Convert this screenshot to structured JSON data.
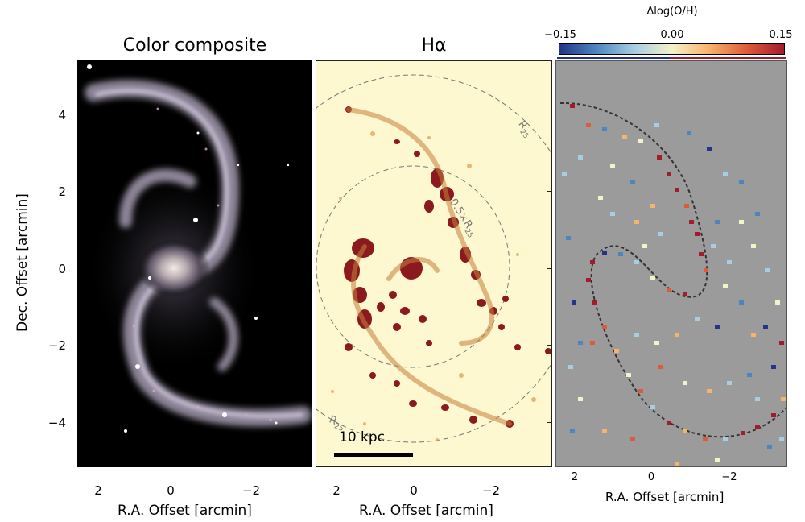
{
  "panels": {
    "left": {
      "title": "Color composite",
      "xlabel": "R.A. Offset [arcmin]",
      "ylabel": "Dec. Offset [arcmin]"
    },
    "middle": {
      "title": "Hα",
      "xlabel": "R.A. Offset [arcmin]",
      "scalebar_label": "10 kpc"
    },
    "right": {
      "xlabel": "R.A. Offset [arcmin]"
    }
  },
  "y_ticks": [
    "4",
    "2",
    "0",
    "−2",
    "−4"
  ],
  "x_ticks_left": [
    "2",
    "0",
    "−2"
  ],
  "x_ticks_middle": [
    "2",
    "0",
    "−2"
  ],
  "x_ticks_right": [
    "2",
    "0",
    "−2"
  ],
  "annotations": {
    "r25": "R25",
    "half_r25": "0.5×R25"
  },
  "colorbar": {
    "label": "Δlog(O/H)",
    "ticks": [
      "−0.15",
      "0.00",
      "0.15"
    ],
    "range": [
      -0.15,
      0.15
    ],
    "colors": [
      "#23358a",
      "#4d86bf",
      "#a7cde3",
      "#f4f2c8",
      "#f6b36a",
      "#df5a3a",
      "#a51b2c"
    ]
  }
}
